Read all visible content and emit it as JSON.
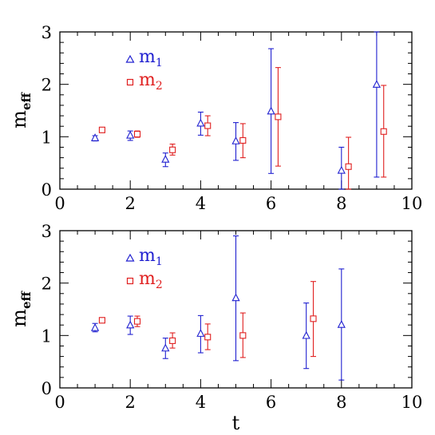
{
  "colors": {
    "m1": "#2020d0",
    "m2": "#e02020",
    "axis": "#000000"
  },
  "chart_data": [
    {
      "type": "scatter",
      "errorbars": true,
      "xlabel": "",
      "ylabel": {
        "main": "m",
        "sub": "eff"
      },
      "xlim": [
        0,
        10
      ],
      "ylim": [
        0,
        3
      ],
      "xticks": [
        "0",
        "2",
        "4",
        "6",
        "8",
        "10"
      ],
      "yticks": [
        "0",
        "1",
        "2",
        "3"
      ],
      "legend_position": "top-left",
      "series": [
        {
          "name": "m",
          "name_sub": "1",
          "marker": "triangle",
          "color": "#2020d0",
          "points": [
            {
              "x": 1,
              "y": 0.97,
              "lo": 0.92,
              "hi": 1.02
            },
            {
              "x": 2,
              "y": 1.02,
              "lo": 0.93,
              "hi": 1.11
            },
            {
              "x": 3,
              "y": 0.56,
              "lo": 0.43,
              "hi": 0.69
            },
            {
              "x": 4,
              "y": 1.25,
              "lo": 1.03,
              "hi": 1.47
            },
            {
              "x": 5,
              "y": 0.91,
              "lo": 0.55,
              "hi": 1.27
            },
            {
              "x": 6,
              "y": 1.48,
              "lo": 0.3,
              "hi": 2.68
            },
            {
              "x": 8,
              "y": 0.35,
              "lo": 0.0,
              "hi": 0.8
            },
            {
              "x": 9,
              "y": 1.99,
              "lo": 0.23,
              "hi": 3.0
            }
          ]
        },
        {
          "name": "m",
          "name_sub": "2",
          "marker": "square",
          "color": "#e02020",
          "points": [
            {
              "x": 1.2,
              "y": 1.13,
              "lo": 1.08,
              "hi": 1.18
            },
            {
              "x": 2.2,
              "y": 1.05,
              "lo": 0.99,
              "hi": 1.11
            },
            {
              "x": 3.2,
              "y": 0.75,
              "lo": 0.65,
              "hi": 0.86
            },
            {
              "x": 4.2,
              "y": 1.21,
              "lo": 1.02,
              "hi": 1.4
            },
            {
              "x": 5.2,
              "y": 0.93,
              "lo": 0.6,
              "hi": 1.25
            },
            {
              "x": 6.2,
              "y": 1.38,
              "lo": 0.44,
              "hi": 2.32
            },
            {
              "x": 8.2,
              "y": 0.43,
              "lo": 0.0,
              "hi": 0.99
            },
            {
              "x": 9.2,
              "y": 1.1,
              "lo": 0.23,
              "hi": 1.98
            }
          ]
        }
      ]
    },
    {
      "type": "scatter",
      "errorbars": true,
      "xlabel": "t",
      "ylabel": {
        "main": "m",
        "sub": "eff"
      },
      "xlim": [
        0,
        10
      ],
      "ylim": [
        0,
        3
      ],
      "xticks": [
        "0",
        "2",
        "4",
        "6",
        "8",
        "10"
      ],
      "yticks": [
        "0",
        "1",
        "2",
        "3"
      ],
      "legend_position": "top-left",
      "series": [
        {
          "name": "m",
          "name_sub": "1",
          "marker": "triangle",
          "color": "#2020d0",
          "points": [
            {
              "x": 1,
              "y": 1.14,
              "lo": 1.07,
              "hi": 1.23
            },
            {
              "x": 2,
              "y": 1.19,
              "lo": 1.02,
              "hi": 1.37
            },
            {
              "x": 3,
              "y": 0.75,
              "lo": 0.56,
              "hi": 0.95
            },
            {
              "x": 4,
              "y": 1.03,
              "lo": 0.67,
              "hi": 1.38
            },
            {
              "x": 5,
              "y": 1.71,
              "lo": 0.52,
              "hi": 2.9
            },
            {
              "x": 7,
              "y": 0.99,
              "lo": 0.37,
              "hi": 1.62
            },
            {
              "x": 8,
              "y": 1.2,
              "lo": 0.15,
              "hi": 2.27
            }
          ]
        },
        {
          "name": "m",
          "name_sub": "2",
          "marker": "square",
          "color": "#e02020",
          "points": [
            {
              "x": 1.2,
              "y": 1.29,
              "lo": 1.24,
              "hi": 1.34
            },
            {
              "x": 2.2,
              "y": 1.27,
              "lo": 1.17,
              "hi": 1.37
            },
            {
              "x": 3.2,
              "y": 0.9,
              "lo": 0.76,
              "hi": 1.05
            },
            {
              "x": 4.2,
              "y": 0.97,
              "lo": 0.73,
              "hi": 1.22
            },
            {
              "x": 5.2,
              "y": 1.0,
              "lo": 0.58,
              "hi": 1.43
            },
            {
              "x": 7.2,
              "y": 1.32,
              "lo": 0.6,
              "hi": 2.03
            }
          ]
        }
      ]
    }
  ]
}
